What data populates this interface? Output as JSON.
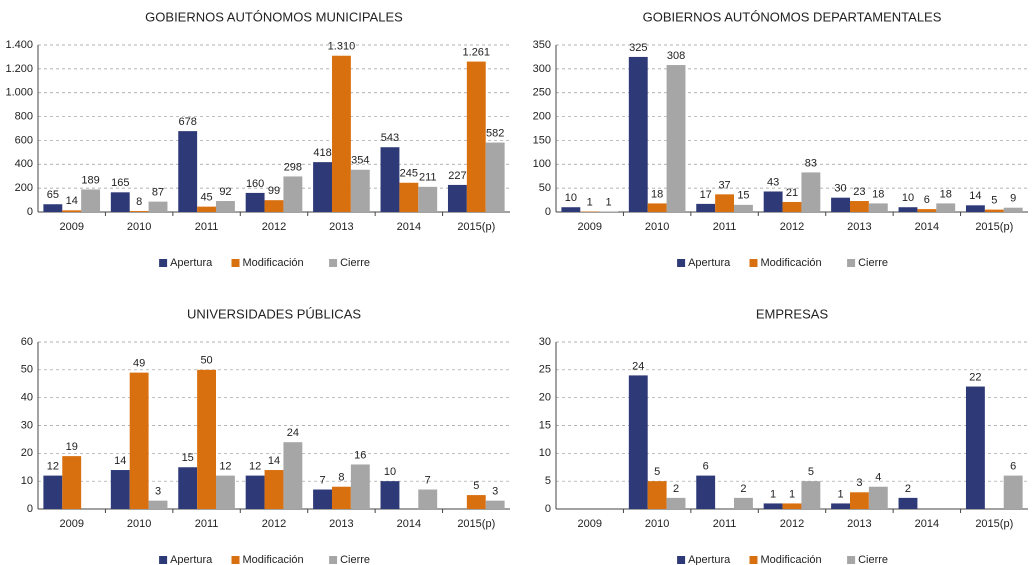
{
  "chart_data": [
    {
      "type": "bar",
      "title": "GOBIERNOS AUTÓNOMOS MUNICIPALES",
      "categories": [
        "2009",
        "2010",
        "2011",
        "2012",
        "2013",
        "2014",
        "2015(p)"
      ],
      "series": [
        {
          "name": "Apertura",
          "color": "#2e3a78",
          "values": [
            65,
            165,
            678,
            160,
            418,
            543,
            227
          ]
        },
        {
          "name": "Modificación",
          "color": "#d9700f",
          "values": [
            14,
            8,
            45,
            99,
            1310,
            245,
            1261
          ],
          "value_labels": [
            "14",
            "8",
            "45",
            "99",
            "1.310",
            "245",
            "1.261"
          ]
        },
        {
          "name": "Cierre",
          "color": "#a6a6a6",
          "values": [
            189,
            87,
            92,
            298,
            354,
            211,
            582
          ]
        }
      ],
      "ylim": [
        0,
        1400
      ],
      "yticks": [
        0,
        200,
        400,
        600,
        800,
        {
          "value": 1000,
          "label": "1.000"
        },
        {
          "value": 1200,
          "label": "1.200"
        },
        {
          "value": 1400,
          "label": "1.400"
        }
      ],
      "grid": true,
      "legend": "bottom"
    },
    {
      "type": "bar",
      "title": "GOBIERNOS AUTÓNOMOS DEPARTAMENTALES",
      "categories": [
        "2009",
        "2010",
        "2011",
        "2012",
        "2013",
        "2014",
        "2015(p)"
      ],
      "series": [
        {
          "name": "Apertura",
          "color": "#2e3a78",
          "values": [
            10,
            325,
            17,
            43,
            30,
            10,
            14
          ]
        },
        {
          "name": "Modificación",
          "color": "#d9700f",
          "values": [
            1,
            18,
            37,
            21,
            23,
            6,
            5
          ]
        },
        {
          "name": "Cierre",
          "color": "#a6a6a6",
          "values": [
            1,
            308,
            15,
            83,
            18,
            18,
            9
          ]
        }
      ],
      "ylim": [
        0,
        350
      ],
      "yticks": [
        0,
        50,
        100,
        150,
        200,
        250,
        300,
        350
      ],
      "grid": true,
      "legend": "bottom"
    },
    {
      "type": "bar",
      "title": "UNIVERSIDADES PÚBLICAS",
      "categories": [
        "2009",
        "2010",
        "2011",
        "2012",
        "2013",
        "2014",
        "2015(p)"
      ],
      "series": [
        {
          "name": "Apertura",
          "color": "#2e3a78",
          "values": [
            12,
            14,
            15,
            12,
            7,
            10,
            null
          ]
        },
        {
          "name": "Modificación",
          "color": "#d9700f",
          "values": [
            19,
            49,
            50,
            14,
            8,
            null,
            5
          ]
        },
        {
          "name": "Cierre",
          "color": "#a6a6a6",
          "values": [
            null,
            3,
            12,
            24,
            16,
            7,
            3
          ]
        }
      ],
      "ylim": [
        0,
        60
      ],
      "yticks": [
        0,
        10,
        20,
        30,
        40,
        50,
        60
      ],
      "grid": true,
      "legend": "bottom"
    },
    {
      "type": "bar",
      "title": "EMPRESAS",
      "categories": [
        "2009",
        "2010",
        "2011",
        "2012",
        "2013",
        "2014",
        "2015(p)"
      ],
      "series": [
        {
          "name": "Apertura",
          "color": "#2e3a78",
          "values": [
            null,
            24,
            6,
            1,
            1,
            2,
            22
          ]
        },
        {
          "name": "Modificación",
          "color": "#d9700f",
          "values": [
            null,
            5,
            null,
            1,
            3,
            null,
            null
          ]
        },
        {
          "name": "Cierre",
          "color": "#a6a6a6",
          "values": [
            null,
            2,
            2,
            5,
            4,
            null,
            6
          ]
        }
      ],
      "ylim": [
        0,
        30
      ],
      "yticks": [
        0,
        5,
        10,
        15,
        20,
        25,
        30
      ],
      "grid": true,
      "legend": "bottom"
    }
  ]
}
